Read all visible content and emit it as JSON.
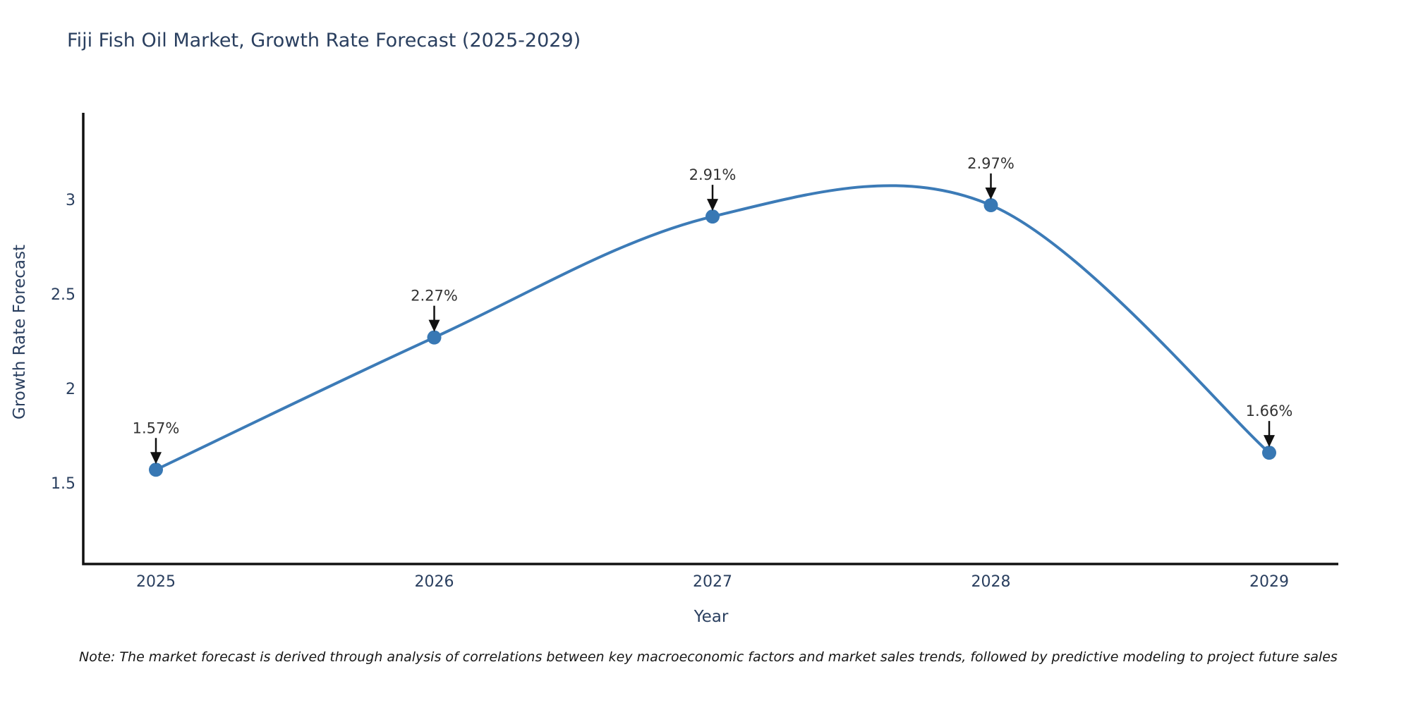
{
  "title": "Fiji Fish Oil Market, Growth Rate Forecast (2025-2029)",
  "note": "Note: The market forecast is derived through analysis of correlations between key macroeconomic factors and market sales trends, followed by predictive modeling to project future sales",
  "colors": {
    "line": "#3c7bb7",
    "marker": "#3878b4",
    "axis_line": "#111111",
    "title_text": "#2a3f5f",
    "tick_text": "#2a3f5f",
    "annotation_text": "#333333",
    "arrow": "#111111",
    "background": "#ffffff"
  },
  "chart_data": {
    "type": "line",
    "title": "Fiji Fish Oil Market, Growth Rate Forecast (2025-2029)",
    "xlabel": "Year",
    "ylabel": "Growth Rate Forecast",
    "x": [
      2025,
      2026,
      2027,
      2028,
      2029
    ],
    "values": [
      1.57,
      2.27,
      2.91,
      2.97,
      1.66
    ],
    "point_labels": [
      "1.57%",
      "2.27%",
      "2.91%",
      "2.97%",
      "1.66%"
    ],
    "yticks": [
      1.5,
      2,
      2.5,
      3
    ],
    "ytick_labels": [
      "1.5",
      "2",
      "2.5",
      "3"
    ],
    "ylim": [
      1.071,
      3.459
    ],
    "line_shape": "spline",
    "grid": false,
    "legend": "none"
  }
}
